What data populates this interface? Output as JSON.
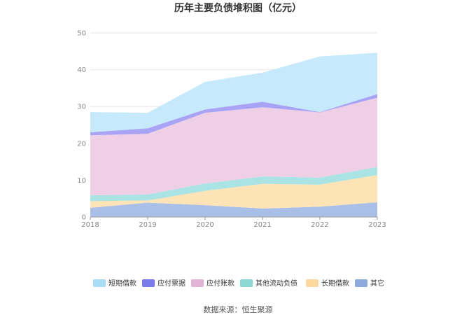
{
  "chart_data": {
    "type": "area",
    "stacked": true,
    "title": "历年主要负债堆积图（亿元）",
    "xlabel": "",
    "ylabel": "",
    "categories": [
      "2018",
      "2019",
      "2020",
      "2021",
      "2022",
      "2023"
    ],
    "ylim": [
      0,
      50
    ],
    "yticks": [
      0,
      10,
      20,
      30,
      40,
      50
    ],
    "grid": true,
    "legend_position": "bottom",
    "series": [
      {
        "name": "其它",
        "color": "#a9bfe8",
        "values": [
          2.5,
          3.9,
          3.2,
          2.3,
          2.8,
          4.0
        ]
      },
      {
        "name": "长期借款",
        "color": "#fde3b5",
        "values": [
          1.8,
          0.6,
          3.9,
          6.7,
          6.0,
          7.4
        ]
      },
      {
        "name": "其他流动负债",
        "color": "#a9e3e3",
        "values": [
          1.6,
          1.6,
          2.0,
          2.0,
          1.9,
          2.2
        ]
      },
      {
        "name": "应付账款",
        "color": "#eecfe5",
        "values": [
          16.3,
          16.5,
          19.2,
          18.8,
          17.7,
          18.8
        ]
      },
      {
        "name": "应付票据",
        "color": "#a8a3f5",
        "values": [
          0.8,
          1.5,
          0.9,
          1.5,
          0.1,
          1.0
        ]
      },
      {
        "name": "短期借款",
        "color": "#c6eafb",
        "values": [
          5.5,
          4.2,
          7.5,
          7.9,
          15.1,
          11.2
        ]
      }
    ]
  },
  "legend_markers": [
    "#a9dcf5",
    "#7b7beb",
    "#e3b3d6",
    "#8ed7d7",
    "#fcd89f",
    "#8ea9dd"
  ],
  "source": "数据来源：恒生聚源"
}
